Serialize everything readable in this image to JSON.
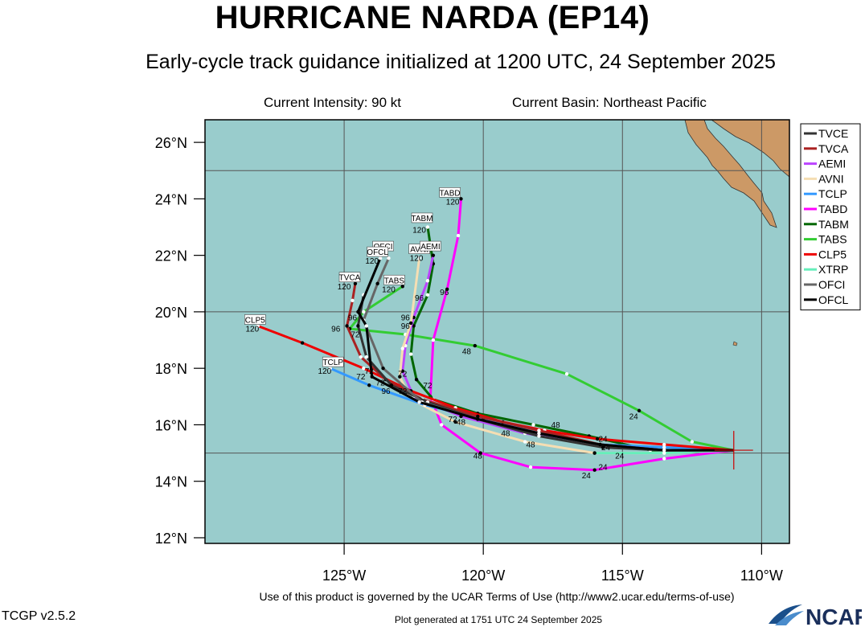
{
  "header": {
    "title": "HURRICANE NARDA (EP14)",
    "subtitle": "Early-cycle track guidance initialized at 1200 UTC, 24 September 2025",
    "current_intensity": "Current Intensity: 90 kt",
    "current_basin": "Current Basin: Northeast Pacific"
  },
  "footer": {
    "terms": "Use of this product is governed by the UCAR Terms of Use (http://www2.ucar.edu/terms-of-use)",
    "version": "TCGP v2.5.2",
    "generated": "Plot generated at 1751 UTC   24 September 2025",
    "logo_text": "NCAR"
  },
  "colors": {
    "ocean": "#99cccc",
    "land": "#cc9966",
    "grid": "#555555"
  },
  "map": {
    "lon_range": [
      -130,
      -109
    ],
    "lat_range": [
      11.8,
      26.8
    ],
    "x_ticks": [
      {
        "lon": -125,
        "label": "125°W"
      },
      {
        "lon": -120,
        "label": "120°W"
      },
      {
        "lon": -115,
        "label": "115°W"
      },
      {
        "lon": -110,
        "label": "110°W"
      }
    ],
    "y_ticks": [
      {
        "lat": 12,
        "label": "12°N"
      },
      {
        "lat": 14,
        "label": "14°N"
      },
      {
        "lat": 16,
        "label": "16°N"
      },
      {
        "lat": 18,
        "label": "18°N"
      },
      {
        "lat": 20,
        "label": "20°N"
      },
      {
        "lat": 22,
        "label": "22°N"
      },
      {
        "lat": 24,
        "label": "24°N"
      },
      {
        "lat": 26,
        "label": "26°N"
      }
    ],
    "grid_lons": [
      -125,
      -120,
      -115,
      -110
    ],
    "grid_lats": [
      15,
      20,
      25
    ],
    "current_position": {
      "lon": -111.0,
      "lat": 15.1
    }
  },
  "legend": [
    {
      "name": "TVCE",
      "color": "#333333"
    },
    {
      "name": "TVCA",
      "color": "#aa2222"
    },
    {
      "name": "AEMI",
      "color": "#bb44ff"
    },
    {
      "name": "AVNI",
      "color": "#f5deb3"
    },
    {
      "name": "TCLP",
      "color": "#3399ff"
    },
    {
      "name": "TABD",
      "color": "#ff00ff"
    },
    {
      "name": "TABM",
      "color": "#006600"
    },
    {
      "name": "TABS",
      "color": "#33cc33"
    },
    {
      "name": "CLP5",
      "color": "#ee0000"
    },
    {
      "name": "XTRP",
      "color": "#66eebb"
    },
    {
      "name": "OFCI",
      "color": "#666666"
    },
    {
      "name": "OFCL",
      "color": "#000000"
    }
  ],
  "chart_data": {
    "type": "scatter",
    "series": [
      {
        "name": "TABS",
        "color": "#33cc33",
        "points": [
          [
            -111,
            15.1
          ],
          [
            -112.5,
            15.4
          ],
          [
            -114.4,
            16.5
          ],
          [
            -117,
            17.8
          ],
          [
            -120.3,
            18.8
          ],
          [
            -122.8,
            19.2
          ],
          [
            -124.8,
            19.4
          ],
          [
            -124.3,
            20
          ],
          [
            -122.9,
            20.9
          ]
        ]
      },
      {
        "name": "TABD",
        "color": "#ff00ff",
        "points": [
          [
            -111,
            15.1
          ],
          [
            -113.5,
            14.8
          ],
          [
            -116,
            14.4
          ],
          [
            -118.3,
            14.5
          ],
          [
            -120.1,
            15
          ],
          [
            -121.5,
            16
          ],
          [
            -121.9,
            17
          ],
          [
            -121.8,
            19
          ],
          [
            -121.3,
            20.8
          ],
          [
            -120.9,
            22.7
          ],
          [
            -120.8,
            24
          ]
        ]
      },
      {
        "name": "TABM",
        "color": "#006600",
        "points": [
          [
            -111,
            15.1
          ],
          [
            -114,
            15.1
          ],
          [
            -116.2,
            15.6
          ],
          [
            -118.2,
            16
          ],
          [
            -120.2,
            16.4
          ],
          [
            -121.8,
            16.9
          ],
          [
            -122.4,
            17.6
          ],
          [
            -122.6,
            18.5
          ],
          [
            -122.5,
            19.5
          ],
          [
            -122,
            20.6
          ],
          [
            -121.8,
            21.7
          ],
          [
            -122,
            23
          ]
        ]
      },
      {
        "name": "AEMI",
        "color": "#bb44ff",
        "points": [
          [
            -111,
            15.1
          ],
          [
            -113.5,
            15.1
          ],
          [
            -116,
            15.3
          ],
          [
            -118.5,
            15.7
          ],
          [
            -120.8,
            16.3
          ],
          [
            -122.5,
            17
          ],
          [
            -122.9,
            17.9
          ],
          [
            -122.8,
            18.8
          ],
          [
            -122.5,
            19.8
          ],
          [
            -122,
            21.1
          ],
          [
            -121.8,
            22
          ]
        ]
      },
      {
        "name": "AVNI",
        "color": "#f5deb3",
        "points": [
          [
            -111,
            15.1
          ],
          [
            -113.5,
            15
          ],
          [
            -116,
            15
          ],
          [
            -118.5,
            15.4
          ],
          [
            -121,
            16.1
          ],
          [
            -122.6,
            16.9
          ],
          [
            -123,
            17.7
          ],
          [
            -122.9,
            18.7
          ],
          [
            -122.6,
            19.6
          ],
          [
            -122.3,
            21.9
          ]
        ]
      },
      {
        "name": "TCLP",
        "color": "#3399ff",
        "points": [
          [
            -111,
            15.1
          ],
          [
            -113.5,
            15.2
          ],
          [
            -115.8,
            15.3
          ],
          [
            -118,
            15.7
          ],
          [
            -120,
            16.2
          ],
          [
            -122.1,
            16.7
          ],
          [
            -124.1,
            17.4
          ],
          [
            -125.5,
            18
          ]
        ]
      },
      {
        "name": "CLP5",
        "color": "#ee0000",
        "points": [
          [
            -111,
            15.1
          ],
          [
            -113.5,
            15.3
          ],
          [
            -115.9,
            15.5
          ],
          [
            -117.8,
            15.8
          ],
          [
            -119.3,
            16.1
          ],
          [
            -121,
            16.6
          ],
          [
            -122.6,
            17.2
          ],
          [
            -124.3,
            18
          ],
          [
            -126.5,
            18.9
          ],
          [
            -128.1,
            19.5
          ]
        ]
      },
      {
        "name": "XTRP",
        "color": "#66eebb",
        "points": [
          [
            -111,
            15.1
          ],
          [
            -113.5,
            15
          ],
          [
            -116,
            15
          ]
        ]
      },
      {
        "name": "TVCA",
        "color": "#aa2222",
        "points": [
          [
            -111,
            15.1
          ],
          [
            -113.5,
            15.1
          ],
          [
            -115.8,
            15.3
          ],
          [
            -118,
            15.8
          ],
          [
            -120.2,
            16.3
          ],
          [
            -122.2,
            16.9
          ],
          [
            -123.5,
            17.6
          ],
          [
            -124.4,
            18.4
          ],
          [
            -124.9,
            19.5
          ],
          [
            -124.7,
            20.4
          ],
          [
            -124.6,
            21
          ]
        ]
      },
      {
        "name": "TVCE",
        "color": "#333333",
        "points": [
          [
            -111,
            15.1
          ],
          [
            -113.5,
            15.1
          ],
          [
            -115.7,
            15.2
          ],
          [
            -118,
            15.6
          ],
          [
            -120.2,
            16.2
          ],
          [
            -122,
            16.8
          ],
          [
            -123.3,
            17.4
          ],
          [
            -124.2,
            18.4
          ],
          [
            -124.5,
            19.5
          ],
          [
            -124.3,
            20.6
          ]
        ]
      },
      {
        "name": "OFCI",
        "color": "#666666",
        "points": [
          [
            -111,
            15.1
          ],
          [
            -113.5,
            15.1
          ],
          [
            -115.8,
            15.3
          ],
          [
            -118,
            15.7
          ],
          [
            -120.2,
            16.2
          ],
          [
            -122.2,
            16.8
          ],
          [
            -123.6,
            18
          ],
          [
            -124.3,
            19.7
          ],
          [
            -123.8,
            21
          ],
          [
            -123.4,
            21.9
          ]
        ]
      },
      {
        "name": "OFCL",
        "color": "#000000",
        "points": [
          [
            -111,
            15.1
          ],
          [
            -113.5,
            15.1
          ],
          [
            -115.8,
            15.3
          ],
          [
            -118,
            15.7
          ],
          [
            -120.2,
            16.2
          ],
          [
            -122.3,
            16.8
          ],
          [
            -124,
            17.7
          ],
          [
            -124.2,
            19.5
          ],
          [
            -124.5,
            20
          ],
          [
            -123.7,
            21.9
          ]
        ]
      }
    ],
    "box_labels": [
      {
        "text": "TABD",
        "lon": -121.2,
        "lat": 24.2
      },
      {
        "text": "TABM",
        "lon": -122.2,
        "lat": 23.3
      },
      {
        "text": "OFCI",
        "lon": -123.6,
        "lat": 22.3
      },
      {
        "text": "OFCL",
        "lon": -123.8,
        "lat": 22.1
      },
      {
        "text": "AVNI",
        "lon": -122.3,
        "lat": 22.2
      },
      {
        "text": "AEMI",
        "lon": -121.9,
        "lat": 22.3
      },
      {
        "text": "TABS",
        "lon": -123.2,
        "lat": 21.1
      },
      {
        "text": "TVCA",
        "lon": -124.8,
        "lat": 21.2
      },
      {
        "text": "CLP5",
        "lon": -128.2,
        "lat": 19.7
      },
      {
        "text": "TCLP",
        "lon": -125.4,
        "lat": 18.2
      }
    ],
    "hour_labels": [
      {
        "text": "120",
        "lon": -121.1,
        "lat": 23.8
      },
      {
        "text": "120",
        "lon": -122.3,
        "lat": 22.8
      },
      {
        "text": "120",
        "lon": -124,
        "lat": 21.7
      },
      {
        "text": "120",
        "lon": -122.4,
        "lat": 21.8
      },
      {
        "text": "120",
        "lon": -123.4,
        "lat": 20.7
      },
      {
        "text": "120",
        "lon": -125,
        "lat": 20.8
      },
      {
        "text": "120",
        "lon": -128.3,
        "lat": 19.3
      },
      {
        "text": "120",
        "lon": -125.7,
        "lat": 17.8
      },
      {
        "text": "96",
        "lon": -125.3,
        "lat": 19.3
      },
      {
        "text": "96",
        "lon": -124.7,
        "lat": 19.7
      },
      {
        "text": "96",
        "lon": -122.8,
        "lat": 19.7
      },
      {
        "text": "96",
        "lon": -122.8,
        "lat": 19.4
      },
      {
        "text": "96",
        "lon": -122.3,
        "lat": 20.4
      },
      {
        "text": "96",
        "lon": -121.4,
        "lat": 20.6
      },
      {
        "text": "96",
        "lon": -125.6,
        "lat": 18.1
      },
      {
        "text": "96",
        "lon": -123.5,
        "lat": 17.1
      },
      {
        "text": "72",
        "lon": -124.6,
        "lat": 19.1
      },
      {
        "text": "72",
        "lon": -124.1,
        "lat": 17.8
      },
      {
        "text": "72",
        "lon": -124.4,
        "lat": 17.6
      },
      {
        "text": "72",
        "lon": -123.7,
        "lat": 17.4
      },
      {
        "text": "72",
        "lon": -122.9,
        "lat": 17.7
      },
      {
        "text": "72",
        "lon": -122.9,
        "lat": 17.1
      },
      {
        "text": "72",
        "lon": -122,
        "lat": 17.3
      },
      {
        "text": "72",
        "lon": -121.1,
        "lat": 16.1
      },
      {
        "text": "48",
        "lon": -120.6,
        "lat": 18.5
      },
      {
        "text": "48",
        "lon": -120.8,
        "lat": 16.0
      },
      {
        "text": "48",
        "lon": -119.2,
        "lat": 15.6
      },
      {
        "text": "48",
        "lon": -118.3,
        "lat": 15.2
      },
      {
        "text": "48",
        "lon": -117.4,
        "lat": 15.9
      },
      {
        "text": "48",
        "lon": -120.2,
        "lat": 14.8
      },
      {
        "text": "24",
        "lon": -115.7,
        "lat": 15.4
      },
      {
        "text": "24",
        "lon": -115.6,
        "lat": 15.1
      },
      {
        "text": "24",
        "lon": -115.1,
        "lat": 14.8
      },
      {
        "text": "24",
        "lon": -115.7,
        "lat": 14.4
      },
      {
        "text": "24",
        "lon": -116.3,
        "lat": 14.1
      },
      {
        "text": "24",
        "lon": -114.6,
        "lat": 16.2
      }
    ]
  }
}
